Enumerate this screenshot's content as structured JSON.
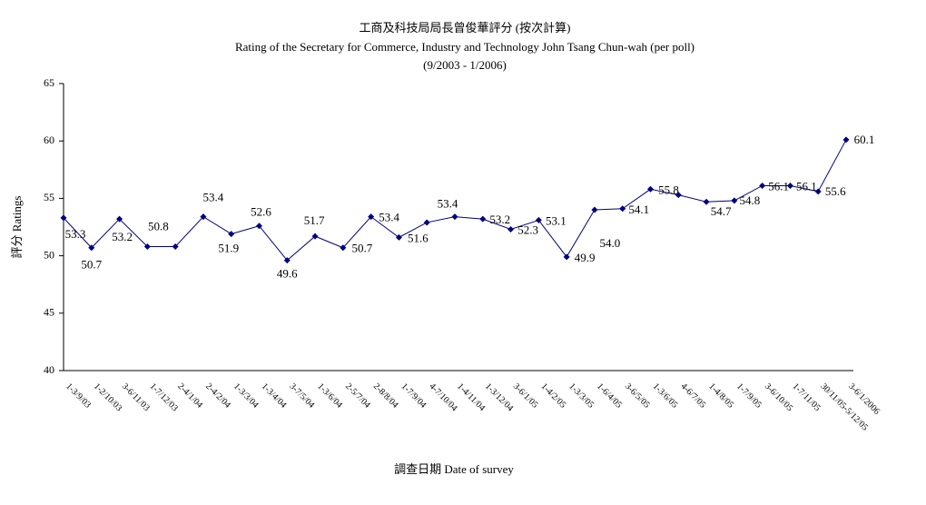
{
  "chart_data": {
    "type": "line",
    "title": "工商及科技局局長曾俊華評分 (按次計算)",
    "subtitle": "Rating of the Secretary for Commerce, Industry and Technology John Tsang Chun-wah  (per poll)",
    "period": "(9/2003 - 1/2006)",
    "y_label": "評分 Ratings",
    "x_label": "調查日期 Date of survey",
    "categories": [
      "1-3/9/03",
      "1-2/10/03",
      "3-6/11/03",
      "1-7/12/03",
      "2-4/1/04",
      "2-4/2/04",
      "1-3/3/04",
      "1-3/4/04",
      "3-7/5/04",
      "1-3/6/04",
      "2-5/7/04",
      "2-8/8/04",
      "1-7/9/04",
      "4-7/10/04",
      "1-4/11/04",
      "1-3/12/04",
      "3-6/1/05",
      "1-4/2/05",
      "1-3/3/05",
      "1-6/4/05",
      "3-6/5/05",
      "1-3/6/05",
      "4-6/7/05",
      "1-4/8/05",
      "1-7/9/05",
      "3-6/10/05",
      "1-7/11/05",
      "30/11/05-5/12/05",
      "3-6/1/2006"
    ],
    "series": [
      {
        "name": "Ratings",
        "color": "#000080",
        "values": [
          53.3,
          50.7,
          53.2,
          50.8,
          50.8,
          53.4,
          51.9,
          52.6,
          49.6,
          51.7,
          50.7,
          53.4,
          51.6,
          52.9,
          53.4,
          53.2,
          52.3,
          53.1,
          49.9,
          54.0,
          54.1,
          55.8,
          55.3,
          54.7,
          54.8,
          56.1,
          56.1,
          55.6,
          60.1
        ],
        "value_labels": [
          "53.3",
          "50.7",
          "53.2",
          "50.8",
          null,
          "53.4",
          "51.9",
          "52.6",
          "49.6",
          "51.7",
          "50.7",
          "53.4",
          "51.6",
          null,
          "53.4",
          "53.2",
          "52.3",
          "53.1",
          "49.9",
          "54.0",
          "54.1",
          "55.8",
          null,
          "54.7",
          "54.8",
          "56.1",
          "56.1",
          "55.6",
          "60.1"
        ]
      }
    ],
    "ylim": [
      40,
      65
    ],
    "yticks": [
      40,
      45,
      50,
      55,
      60,
      65
    ]
  }
}
